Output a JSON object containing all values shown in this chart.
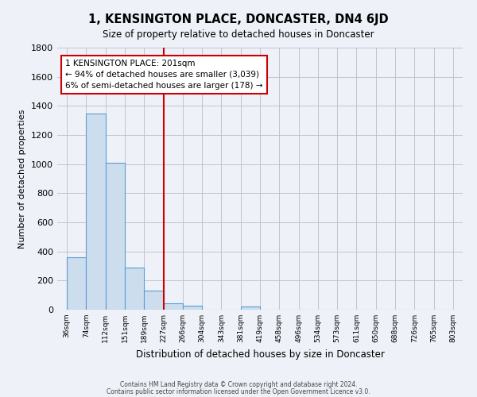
{
  "title": "1, KENSINGTON PLACE, DONCASTER, DN4 6JD",
  "subtitle": "Size of property relative to detached houses in Doncaster",
  "xlabel": "Distribution of detached houses by size in Doncaster",
  "ylabel": "Number of detached properties",
  "bar_values": [
    360,
    1345,
    1010,
    290,
    130,
    45,
    25,
    0,
    0,
    20,
    0,
    0,
    0,
    0,
    0,
    0,
    0,
    0,
    0,
    0
  ],
  "bar_labels": [
    "36sqm",
    "74sqm",
    "112sqm",
    "151sqm",
    "189sqm",
    "227sqm",
    "266sqm",
    "304sqm",
    "343sqm",
    "381sqm",
    "419sqm",
    "458sqm",
    "496sqm",
    "534sqm",
    "573sqm",
    "611sqm",
    "650sqm",
    "688sqm",
    "726sqm",
    "765sqm",
    "803sqm"
  ],
  "bar_color": "#ccdded",
  "bar_edge_color": "#5b9bd5",
  "annotation_title": "1 KENSINGTON PLACE: 201sqm",
  "annotation_line1": "← 94% of detached houses are smaller (3,039)",
  "annotation_line2": "6% of semi-detached houses are larger (178) →",
  "annotation_box_color": "#ffffff",
  "annotation_box_edge": "#cc0000",
  "red_line_color": "#cc0000",
  "ylim": [
    0,
    1800
  ],
  "yticks": [
    0,
    200,
    400,
    600,
    800,
    1000,
    1200,
    1400,
    1600,
    1800
  ],
  "grid_color": "#bbbbcc",
  "background_color": "#eef2f8",
  "footer1": "Contains HM Land Registry data © Crown copyright and database right 2024.",
  "footer2": "Contains public sector information licensed under the Open Government Licence v3.0."
}
